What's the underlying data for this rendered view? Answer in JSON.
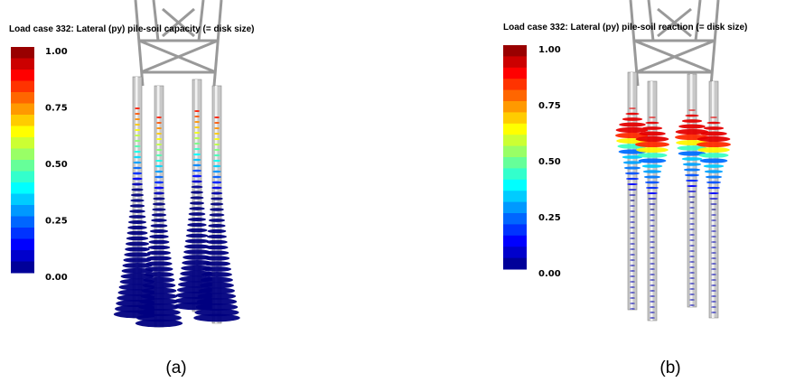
{
  "panels": [
    {
      "title": "Load case 332: Lateral (py) pile-soil capacity (= disk size)",
      "legend_labels": [
        "1.00",
        "0.75",
        "0.50",
        "0.25",
        "0.00"
      ],
      "caption": "(a)"
    },
    {
      "title": "Load case 332: Lateral (py) pile-soil reaction (= disk size)",
      "legend_labels": [
        "1.00",
        "0.75",
        "0.50",
        "0.25",
        "0.00"
      ],
      "caption": "(b)"
    }
  ]
}
